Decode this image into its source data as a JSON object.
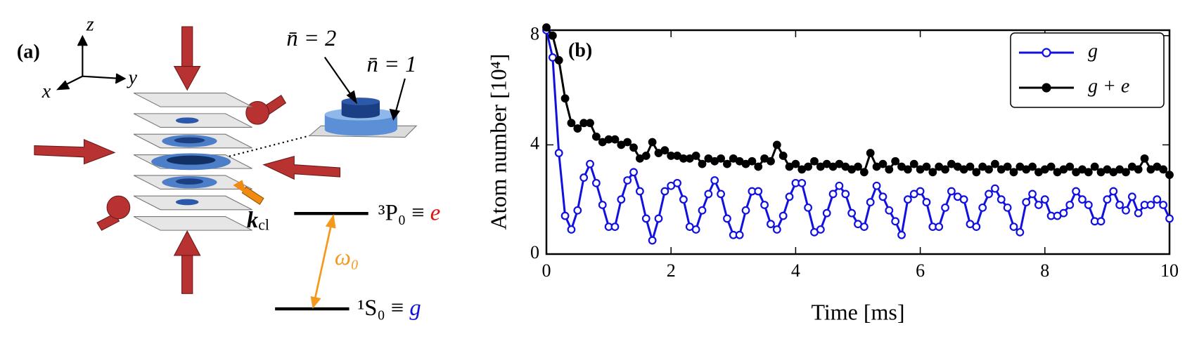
{
  "diagram": {
    "panel_label": "(a)",
    "axes": {
      "z": "z",
      "y": "y",
      "x": "x"
    },
    "nbar2": "n̄ = 2",
    "nbar1": "n̄ = 1",
    "k_label": "k",
    "k_sub": "cl",
    "excited": {
      "label": "³P₀ ≡ ",
      "state": "e"
    },
    "ground": {
      "label": "¹S₀ ≡ ",
      "state": "g"
    },
    "omega": "ω₀"
  },
  "chart_data": {
    "type": "line",
    "label": "(b)",
    "xlabel": "Time [ms]",
    "ylabel": "Atom number [10⁴]",
    "xlim": [
      0,
      10
    ],
    "ylim": [
      0,
      8.2
    ],
    "xticks": [
      0,
      2,
      4,
      6,
      8,
      10
    ],
    "yticks": [
      0,
      4,
      8
    ],
    "legend": "upper right",
    "x": [
      0,
      0.1,
      0.2,
      0.3,
      0.4,
      0.5,
      0.6,
      0.7,
      0.8,
      0.9,
      1,
      1.1,
      1.2,
      1.3,
      1.4,
      1.5,
      1.6,
      1.7,
      1.8,
      1.9,
      2,
      2.1,
      2.2,
      2.3,
      2.4,
      2.5,
      2.6,
      2.7,
      2.8,
      2.9,
      3,
      3.1,
      3.2,
      3.3,
      3.4,
      3.5,
      3.6,
      3.7,
      3.8,
      3.9,
      4,
      4.1,
      4.2,
      4.3,
      4.4,
      4.5,
      4.6,
      4.7,
      4.8,
      4.9,
      5,
      5.1,
      5.2,
      5.3,
      5.4,
      5.5,
      5.6,
      5.7,
      5.8,
      5.9,
      6,
      6.1,
      6.2,
      6.3,
      6.4,
      6.5,
      6.6,
      6.7,
      6.8,
      6.9,
      7,
      7.1,
      7.2,
      7.3,
      7.4,
      7.5,
      7.6,
      7.7,
      7.8,
      7.9,
      8,
      8.1,
      8.2,
      8.3,
      8.4,
      8.5,
      8.6,
      8.7,
      8.8,
      8.9,
      9,
      9.1,
      9.2,
      9.3,
      9.4,
      9.5,
      9.6,
      9.7,
      9.8,
      9.9,
      10
    ],
    "series": [
      {
        "name": "g",
        "color": "#1010e0",
        "marker": "open",
        "values": [
          8.2,
          7.2,
          3.7,
          1.4,
          0.9,
          1.6,
          2.8,
          3.3,
          2.6,
          1.8,
          1.0,
          1.0,
          2.0,
          2.7,
          3.0,
          2.3,
          1.3,
          0.5,
          1.3,
          2.3,
          2.5,
          2.6,
          2.0,
          1.0,
          0.9,
          1.6,
          2.2,
          2.7,
          2.2,
          1.3,
          0.7,
          0.7,
          1.6,
          2.3,
          2.3,
          1.8,
          1.1,
          0.9,
          1.4,
          2.1,
          2.6,
          2.6,
          1.7,
          0.8,
          0.9,
          1.5,
          2.2,
          2.5,
          2.2,
          1.5,
          1.1,
          1.0,
          1.9,
          2.5,
          2.1,
          1.6,
          1.2,
          0.7,
          2.0,
          2.2,
          2.3,
          1.9,
          1.0,
          1.0,
          1.7,
          2.3,
          2.1,
          2.0,
          1.1,
          1.0,
          1.7,
          2.2,
          2.4,
          2.0,
          1.7,
          1.0,
          0.8,
          1.9,
          2.2,
          1.8,
          2.0,
          1.4,
          1.4,
          1.5,
          1.8,
          2.3,
          2.0,
          1.8,
          1.2,
          1.2,
          2.0,
          2.3,
          1.8,
          1.6,
          2.1,
          1.5,
          1.8,
          1.8,
          2.0,
          1.8,
          1.3
        ]
      },
      {
        "name": "g + e",
        "color": "#000000",
        "marker": "filled",
        "values": [
          8.3,
          8.0,
          7.1,
          5.7,
          4.8,
          4.6,
          4.8,
          4.8,
          4.3,
          4.1,
          4.2,
          4.2,
          4.0,
          4.1,
          3.9,
          3.5,
          3.6,
          4.1,
          3.7,
          3.8,
          3.6,
          3.6,
          3.5,
          3.5,
          3.6,
          3.3,
          3.5,
          3.4,
          3.5,
          3.3,
          3.5,
          3.4,
          3.3,
          3.4,
          3.2,
          3.5,
          3.4,
          4.0,
          3.6,
          3.2,
          3.3,
          3.1,
          3.2,
          3.4,
          3.2,
          3.3,
          3.2,
          3.3,
          3.2,
          3.1,
          3.2,
          3.0,
          3.7,
          3.2,
          3.3,
          3.1,
          3.4,
          3.2,
          3.1,
          3.3,
          3.1,
          3.2,
          3.0,
          3.2,
          3.1,
          3.3,
          3.2,
          3.1,
          3.2,
          3.0,
          3.2,
          3.1,
          3.3,
          3.1,
          3.2,
          3.0,
          3.2,
          3.1,
          3.2,
          3.0,
          3.1,
          3.2,
          3.0,
          3.1,
          3.2,
          3.0,
          3.1,
          3.0,
          3.2,
          3.0,
          3.1,
          3.0,
          3.1,
          3.0,
          3.2,
          3.1,
          3.5,
          3.1,
          3.2,
          3.1,
          2.9
        ]
      }
    ]
  }
}
